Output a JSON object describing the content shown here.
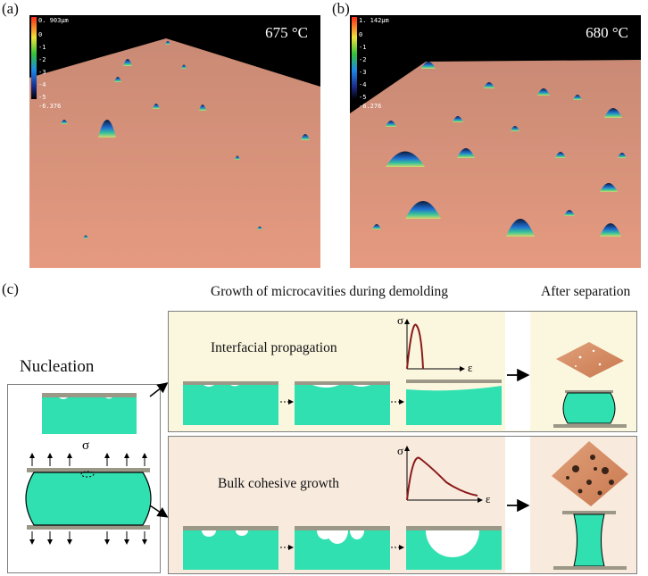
{
  "panels": {
    "a": {
      "label": "(a)",
      "temperature": "675 °C",
      "scale_max": "0. 903µm",
      "scale_min": "-6.376",
      "ticks": [
        "0",
        "-1",
        "-2",
        "-3",
        "-4",
        "-5"
      ]
    },
    "b": {
      "label": "(b)",
      "temperature": "680 °C",
      "scale_max": "1. 142µm",
      "scale_min": "-6.276",
      "ticks": [
        "0",
        "-1",
        "-2",
        "-3",
        "-4",
        "-5"
      ]
    },
    "c": {
      "label": "(c)"
    }
  },
  "schematic": {
    "growth_heading": "Growth of microcavities during demolding",
    "after_heading": "After separation",
    "nucleation": "Nucleation",
    "sigma": "σ",
    "epsilon": "ε",
    "interfacial": "Interfacial propagation",
    "bulk": "Bulk cohesive growth"
  },
  "colors": {
    "teal": "#31e0b0",
    "plate": "#9b9888",
    "surface": "#e8957a",
    "curve": "#8b1a1a"
  }
}
